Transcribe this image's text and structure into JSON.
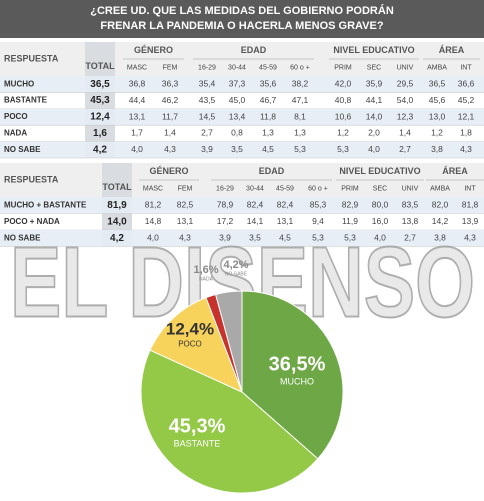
{
  "title": [
    "¿CREE UD. QUE LAS MEDIDAS DEL GOBIERNO PODRÁN",
    "FRENAR LA PANDEMIA O HACERLA MENOS GRAVE?"
  ],
  "watermark": "EL DISENSO",
  "table1": {
    "header": "RESPUESTA",
    "total_header": "TOTAL",
    "groups": [
      {
        "name": "GÉNERO",
        "columns": [
          "MASC",
          "FEM"
        ]
      },
      {
        "name": "EDAD",
        "columns": [
          "16-29",
          "30-44",
          "45-59",
          "60 o +"
        ]
      },
      {
        "name": "NIVEL EDUCATIVO",
        "columns": [
          "PRIM",
          "SEC",
          "UNIV"
        ]
      },
      {
        "name": "ÁREA",
        "columns": [
          "AMBA",
          "INT"
        ]
      }
    ],
    "rows": [
      {
        "label": "MUCHO",
        "total": "36,5",
        "values": [
          "36,8",
          "36,3",
          "35,4",
          "37,3",
          "35,6",
          "38,2",
          "42,0",
          "35,9",
          "29,5",
          "36,5",
          "36,6"
        ]
      },
      {
        "label": "BASTANTE",
        "total": "45,3",
        "values": [
          "44,4",
          "46,2",
          "43,5",
          "45,0",
          "46,7",
          "47,1",
          "40,8",
          "44,1",
          "54,0",
          "45,6",
          "45,2"
        ]
      },
      {
        "label": "POCO",
        "total": "12,4",
        "values": [
          "13,1",
          "11,7",
          "14,5",
          "13,4",
          "11,8",
          "8,1",
          "10,6",
          "14,0",
          "12,3",
          "13,0",
          "12,1"
        ]
      },
      {
        "label": "NADA",
        "total": "1,6",
        "values": [
          "1,7",
          "1,4",
          "2,7",
          "0,8",
          "1,3",
          "1,3",
          "1,2",
          "2,0",
          "1,4",
          "1,2",
          "1,8"
        ]
      },
      {
        "label": "NO SABE",
        "total": "4,2",
        "values": [
          "4,0",
          "4,3",
          "3,9",
          "3,5",
          "4,5",
          "5,3",
          "5,3",
          "4,0",
          "2,7",
          "3,8",
          "4,3"
        ]
      }
    ]
  },
  "table2": {
    "header": "RESPUESTA",
    "total_header": "TOTAL",
    "groups": [
      {
        "name": "GÉNERO",
        "columns": [
          "MASC",
          "FEM"
        ]
      },
      {
        "name": "EDAD",
        "columns": [
          "16-29",
          "30-44",
          "45-59",
          "60 o +"
        ]
      },
      {
        "name": "NIVEL EDUCATIVO",
        "columns": [
          "PRIM",
          "SEC",
          "UNIV"
        ]
      },
      {
        "name": "ÁREA",
        "columns": [
          "AMBA",
          "INT"
        ]
      }
    ],
    "rows": [
      {
        "label": "MUCHO + BASTANTE",
        "total": "81,9",
        "values": [
          "81,2",
          "82,5",
          "78,9",
          "82,4",
          "82,4",
          "85,3",
          "82,9",
          "80,0",
          "83,5",
          "82,0",
          "81,8"
        ]
      },
      {
        "label": "POCO + NADA",
        "total": "14,0",
        "values": [
          "14,8",
          "13,1",
          "17,2",
          "14,1",
          "13,1",
          "9,4",
          "11,9",
          "16,0",
          "13,8",
          "14,2",
          "13,9"
        ]
      },
      {
        "label": "NO SABE",
        "total": "4,2",
        "values": [
          "4,0",
          "4,3",
          "3,9",
          "3,5",
          "4,5",
          "5,3",
          "5,3",
          "4,0",
          "2,7",
          "3,8",
          "4,3"
        ]
      }
    ]
  },
  "chart_data": {
    "type": "pie",
    "categories": [
      "MUCHO",
      "BASTANTE",
      "POCO",
      "NADA",
      "NO SABE"
    ],
    "values": [
      36.5,
      45.3,
      12.4,
      1.6,
      4.2
    ],
    "value_labels": [
      "36,5%",
      "45,3%",
      "12,4%",
      "1,6%",
      "4,2%"
    ],
    "colors": [
      "#6ea846",
      "#94c947",
      "#f7d35c",
      "#c8322d",
      "#a9a9a9"
    ]
  }
}
